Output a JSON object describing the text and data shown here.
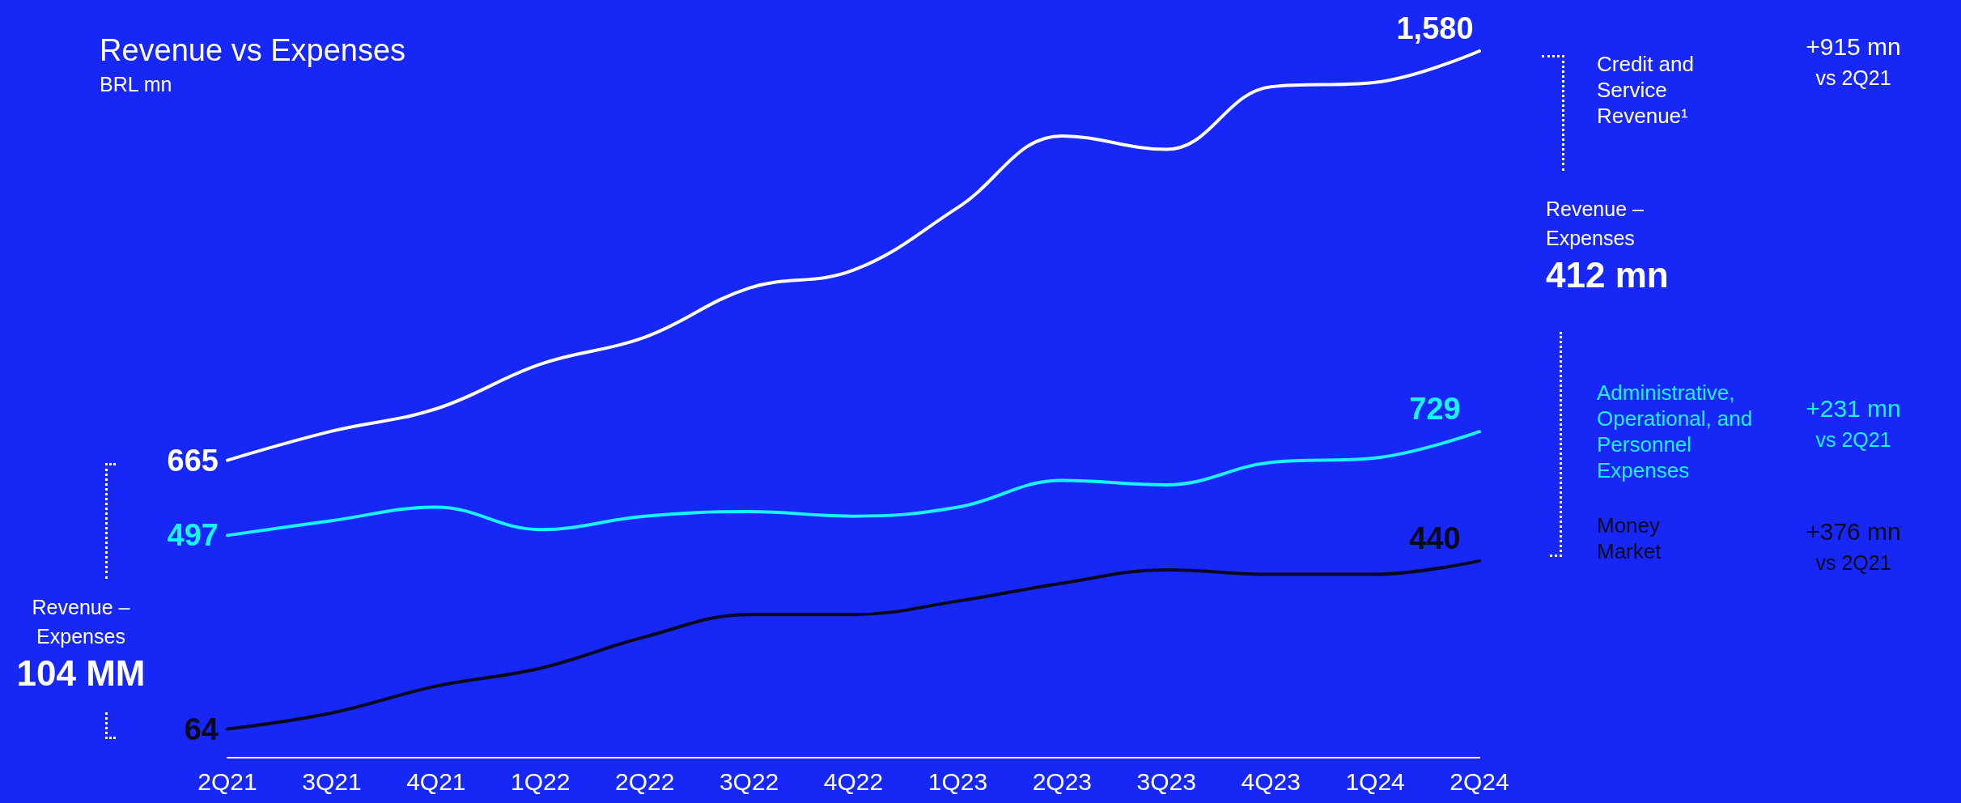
{
  "chart_data": {
    "type": "line",
    "title": "Revenue vs Expenses",
    "subtitle": "BRL mn",
    "legend": "right",
    "grid": false,
    "marker": "none",
    "line_style": "solid",
    "categories": [
      "2Q21",
      "3Q21",
      "4Q21",
      "1Q22",
      "2Q22",
      "3Q22",
      "4Q22",
      "1Q23",
      "2Q23",
      "3Q23",
      "4Q23",
      "1Q24",
      "2Q24"
    ],
    "series": [
      {
        "name": "Credit and Service Revenue¹",
        "color": "#ffffff",
        "values": [
          665,
          730,
          780,
          880,
          940,
          1050,
          1090,
          1230,
          1390,
          1360,
          1500,
          1510,
          1580
        ],
        "value_labels": [
          "665",
          null,
          null,
          null,
          null,
          null,
          null,
          null,
          null,
          null,
          null,
          null,
          "1,580"
        ]
      },
      {
        "name": "Administrative, Operational, and Personnel Expenses",
        "color": "#1cf2ff",
        "values": [
          497,
          530,
          560,
          510,
          540,
          550,
          540,
          560,
          620,
          610,
          660,
          670,
          729
        ],
        "value_labels": [
          "497",
          null,
          null,
          null,
          null,
          null,
          null,
          null,
          null,
          null,
          null,
          null,
          "729"
        ]
      },
      {
        "name": "Money Market",
        "color": "#0a0a1e",
        "values": [
          64,
          100,
          160,
          200,
          270,
          320,
          320,
          350,
          390,
          420,
          410,
          410,
          440
        ],
        "value_labels": [
          "64",
          null,
          null,
          null,
          null,
          null,
          null,
          null,
          null,
          null,
          null,
          null,
          "440"
        ]
      }
    ],
    "annotations": [
      "+915 mn\nvs 2Q21",
      "+231 mn\nvs 2Q21",
      "+376 mn\nvs 2Q21",
      "Revenue –\nExpenses\n412 mn",
      "Revenue –\nExpenses\n104 MM"
    ]
  }
}
